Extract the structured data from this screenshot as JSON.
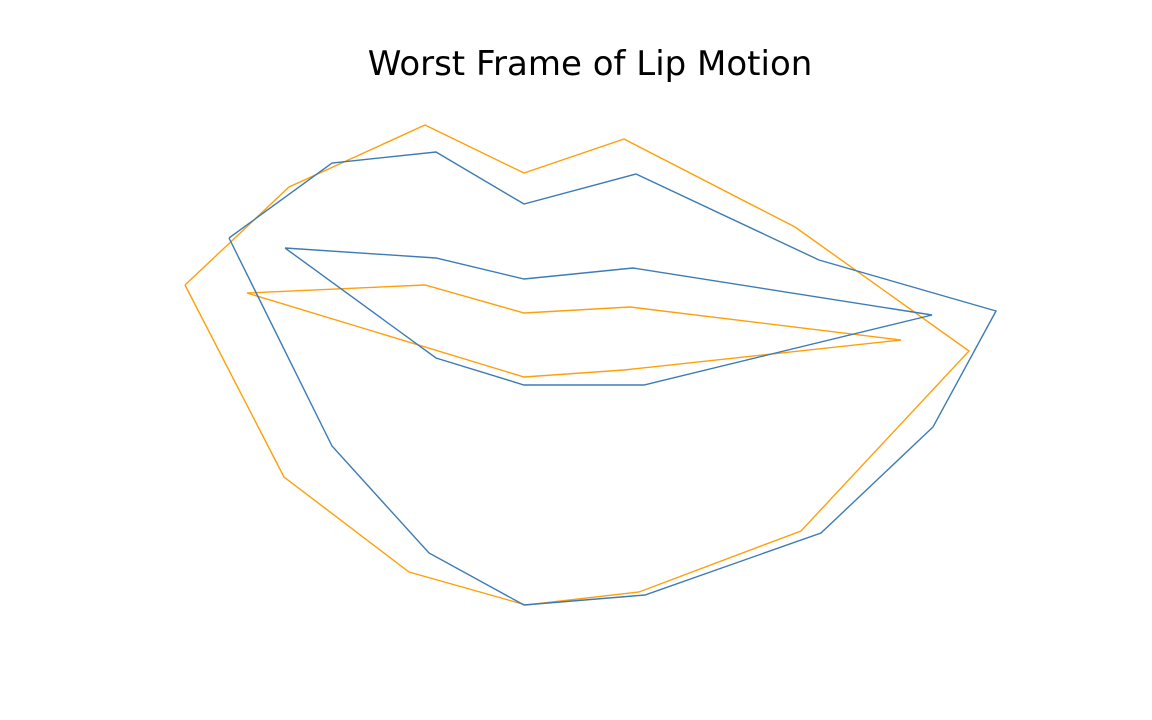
{
  "chart_data": {
    "type": "line",
    "title": "Worst Frame of Lip Motion",
    "xlabel": "",
    "ylabel": "",
    "axes_visible": false,
    "grid": false,
    "xlim": [
      0,
      840
    ],
    "ylim": [
      0,
      520
    ],
    "series": [
      {
        "color": "#ff9f0a",
        "outer_lip": [
          [
            2,
            320
          ],
          [
            106,
            418
          ],
          [
            242,
            480
          ],
          [
            341,
            432
          ],
          [
            441,
            466
          ],
          [
            612,
            378
          ],
          [
            786,
            254
          ],
          [
            618,
            74
          ],
          [
            456,
            13
          ],
          [
            343,
            0
          ],
          [
            226,
            33
          ],
          [
            101,
            128
          ],
          [
            2,
            320
          ]
        ],
        "inner_lip": [
          [
            64,
            312
          ],
          [
            242,
            320
          ],
          [
            341,
            292
          ],
          [
            447,
            298
          ],
          [
            718,
            265
          ],
          [
            441,
            235
          ],
          [
            341,
            228
          ],
          [
            64,
            312
          ]
        ]
      },
      {
        "color": "#3c7bb5",
        "outer_lip": [
          [
            46,
            367
          ],
          [
            149,
            442
          ],
          [
            253,
            453
          ],
          [
            341,
            401
          ],
          [
            453,
            431
          ],
          [
            636,
            345
          ],
          [
            813,
            294
          ],
          [
            750,
            178
          ],
          [
            638,
            72
          ],
          [
            462,
            10
          ],
          [
            341,
            0
          ],
          [
            246,
            52
          ],
          [
            149,
            159
          ],
          [
            46,
            367
          ]
        ],
        "inner_lip": [
          [
            102,
            357
          ],
          [
            253,
            347
          ],
          [
            341,
            326
          ],
          [
            450,
            337
          ],
          [
            749,
            290
          ],
          [
            461,
            220
          ],
          [
            341,
            220
          ],
          [
            253,
            247
          ],
          [
            102,
            357
          ]
        ]
      }
    ]
  }
}
